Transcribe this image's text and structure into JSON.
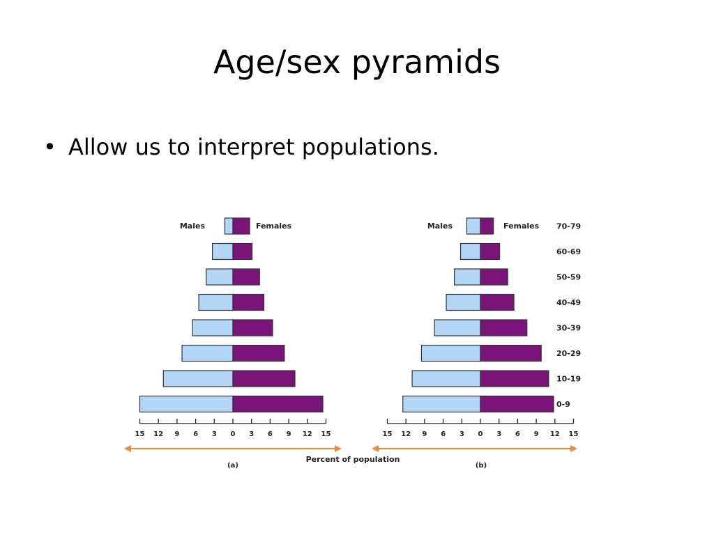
{
  "slide": {
    "title": "Age/sex pyramids",
    "bullet_symbol": "•",
    "bullet": "Allow us to interpret populations."
  },
  "colors": {
    "males": "#b3d6f7",
    "females": "#7a1478",
    "outline": "#333333",
    "arrow": "#f08a3c"
  },
  "chart_data": {
    "type": "bar",
    "orientation": "horizontal-pyramid",
    "xlabel": "Percent of population",
    "age_groups": [
      "0-9",
      "10-19",
      "20-29",
      "30-39",
      "40-49",
      "50-59",
      "60-69",
      "70-79"
    ],
    "x_ticks": [
      15,
      12,
      9,
      6,
      3,
      0,
      3,
      6,
      9,
      12,
      15
    ],
    "xlim": [
      -15,
      15
    ],
    "legend": [
      "Males",
      "Females"
    ],
    "charts": [
      {
        "label": "(a)",
        "series": [
          {
            "name": "Males",
            "values": [
              15,
              11.2,
              8.2,
              6.5,
              5.5,
              4.3,
              3.3,
              1.3
            ]
          },
          {
            "name": "Females",
            "values": [
              14.5,
              10,
              8.3,
              6.4,
              5,
              4.3,
              3.1,
              2.7
            ]
          }
        ]
      },
      {
        "label": "(b)",
        "series": [
          {
            "name": "Males",
            "values": [
              12.5,
              11,
              9.5,
              7.4,
              5.5,
              4.2,
              3.2,
              2.2
            ]
          },
          {
            "name": "Females",
            "values": [
              11.8,
              11,
              9.8,
              7.5,
              5.4,
              4.4,
              3.1,
              2.1
            ]
          }
        ]
      }
    ]
  }
}
